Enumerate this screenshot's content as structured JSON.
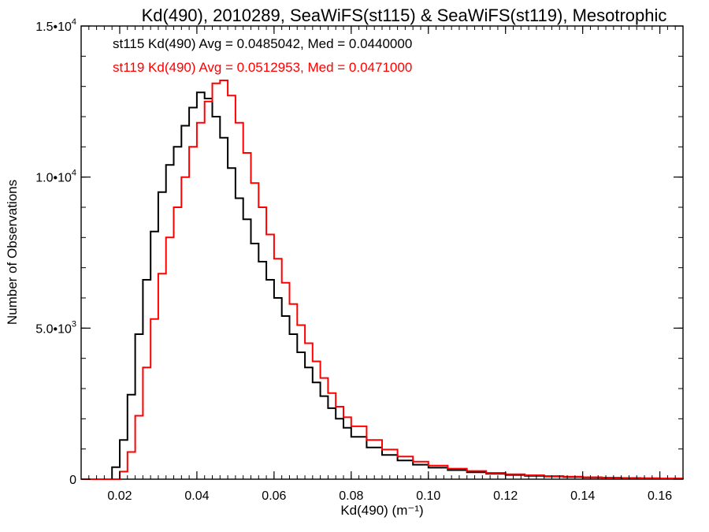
{
  "chart_data": {
    "type": "line",
    "title": "Kd(490), 2010289, SeaWiFS(st115) & SeaWiFS(st119), Mesotrophic",
    "xlabel": "Kd(490) (m⁻¹)",
    "ylabel": "Number of Observations",
    "xlim": [
      0.01,
      0.166
    ],
    "ylim": [
      0,
      15000
    ],
    "x_ticks": [
      0.02,
      0.04,
      0.06,
      0.08,
      0.1,
      0.12,
      0.14,
      0.16
    ],
    "x_tick_labels": [
      "0.02",
      "0.04",
      "0.06",
      "0.08",
      "0.10",
      "0.12",
      "0.14",
      "0.16"
    ],
    "y_ticks": [
      0,
      5000,
      10000,
      15000
    ],
    "y_tick_labels": [
      {
        "mantissa": "0",
        "exp": ""
      },
      {
        "mantissa": "5.0•10",
        "exp": "3"
      },
      {
        "mantissa": "1.0•10",
        "exp": "4"
      },
      {
        "mantissa": "1.5•10",
        "exp": "4"
      }
    ],
    "grid": false,
    "series": [
      {
        "name": "st115",
        "color": "#000000",
        "stats_label": "st115 Kd(490) Avg = 0.0485042, Med = 0.0440000",
        "x": [
          0.01,
          0.016,
          0.018,
          0.02,
          0.022,
          0.024,
          0.026,
          0.028,
          0.03,
          0.032,
          0.034,
          0.036,
          0.038,
          0.04,
          0.042,
          0.044,
          0.046,
          0.048,
          0.05,
          0.052,
          0.054,
          0.056,
          0.058,
          0.06,
          0.062,
          0.064,
          0.066,
          0.068,
          0.07,
          0.072,
          0.074,
          0.076,
          0.078,
          0.08,
          0.084,
          0.088,
          0.092,
          0.096,
          0.1,
          0.105,
          0.11,
          0.115,
          0.12,
          0.125,
          0.13,
          0.135,
          0.14,
          0.145,
          0.15,
          0.155,
          0.16,
          0.166
        ],
        "y": [
          0,
          0,
          400,
          1300,
          2800,
          4800,
          6600,
          8200,
          9500,
          10400,
          11000,
          11700,
          12300,
          12800,
          12600,
          12000,
          11300,
          10300,
          9300,
          8600,
          7800,
          7200,
          6600,
          6000,
          5400,
          4800,
          4200,
          3700,
          3200,
          2750,
          2350,
          2000,
          1700,
          1400,
          1050,
          800,
          620,
          480,
          380,
          300,
          230,
          180,
          140,
          110,
          90,
          70,
          55,
          45,
          35,
          28,
          22,
          0
        ]
      },
      {
        "name": "st119",
        "color": "#ff0000",
        "stats_label": "st119 Kd(490) Avg = 0.0512953, Med = 0.0471000",
        "x": [
          0.01,
          0.018,
          0.02,
          0.022,
          0.024,
          0.026,
          0.028,
          0.03,
          0.032,
          0.034,
          0.036,
          0.038,
          0.04,
          0.042,
          0.044,
          0.046,
          0.048,
          0.05,
          0.052,
          0.054,
          0.056,
          0.058,
          0.06,
          0.062,
          0.064,
          0.066,
          0.068,
          0.07,
          0.072,
          0.074,
          0.076,
          0.078,
          0.08,
          0.084,
          0.088,
          0.092,
          0.096,
          0.1,
          0.105,
          0.11,
          0.115,
          0.12,
          0.125,
          0.13,
          0.135,
          0.14,
          0.145,
          0.15,
          0.155,
          0.16,
          0.166
        ],
        "y": [
          0,
          0,
          250,
          900,
          2100,
          3700,
          5300,
          6800,
          8000,
          9000,
          10000,
          11000,
          11800,
          12500,
          13100,
          13200,
          12700,
          11800,
          10800,
          9800,
          9000,
          8100,
          7300,
          6500,
          5800,
          5100,
          4500,
          3900,
          3350,
          2850,
          2400,
          2050,
          1750,
          1300,
          980,
          750,
          580,
          450,
          350,
          270,
          210,
          165,
          130,
          105,
          85,
          65,
          52,
          42,
          32,
          25,
          0
        ]
      }
    ]
  }
}
